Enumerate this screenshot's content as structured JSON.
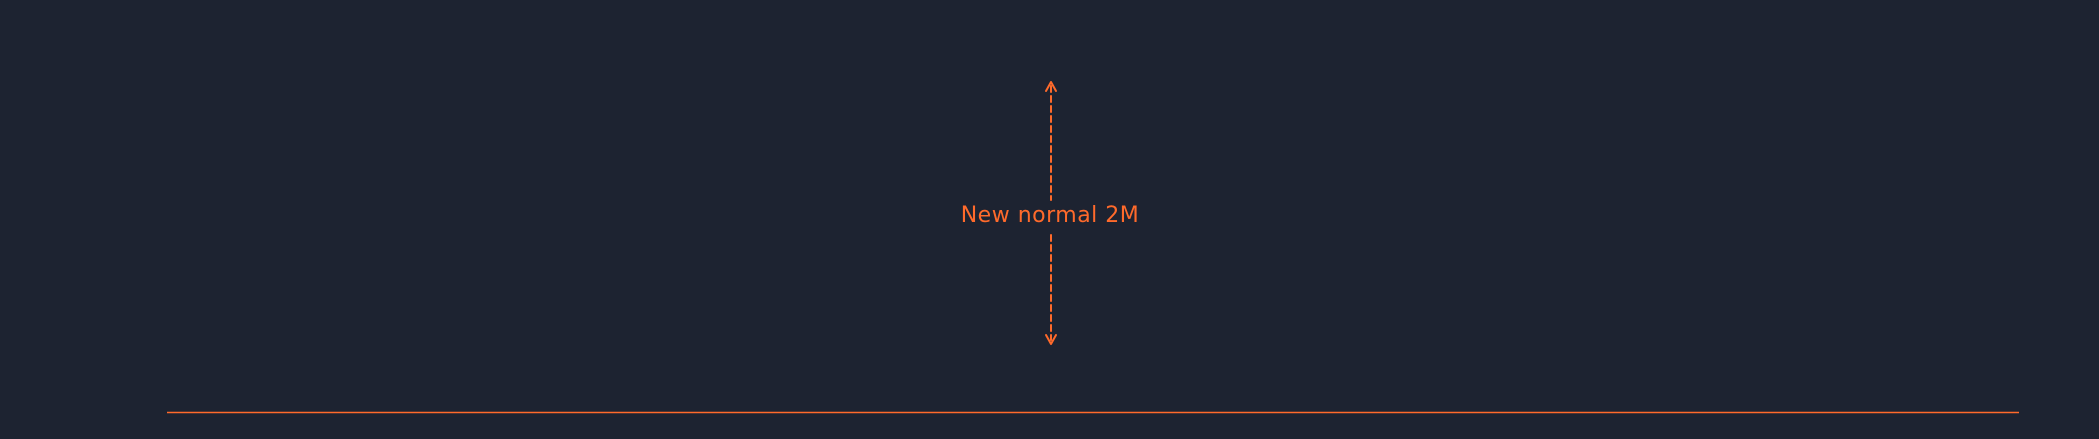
{
  "annotation": {
    "label": "New normal 2M",
    "arrow_direction": "bidirectional-vertical",
    "line_style": "dashed"
  },
  "baseline": {
    "style": "solid"
  },
  "colors": {
    "background": "#1d2331",
    "accent": "#ff6a2b"
  }
}
